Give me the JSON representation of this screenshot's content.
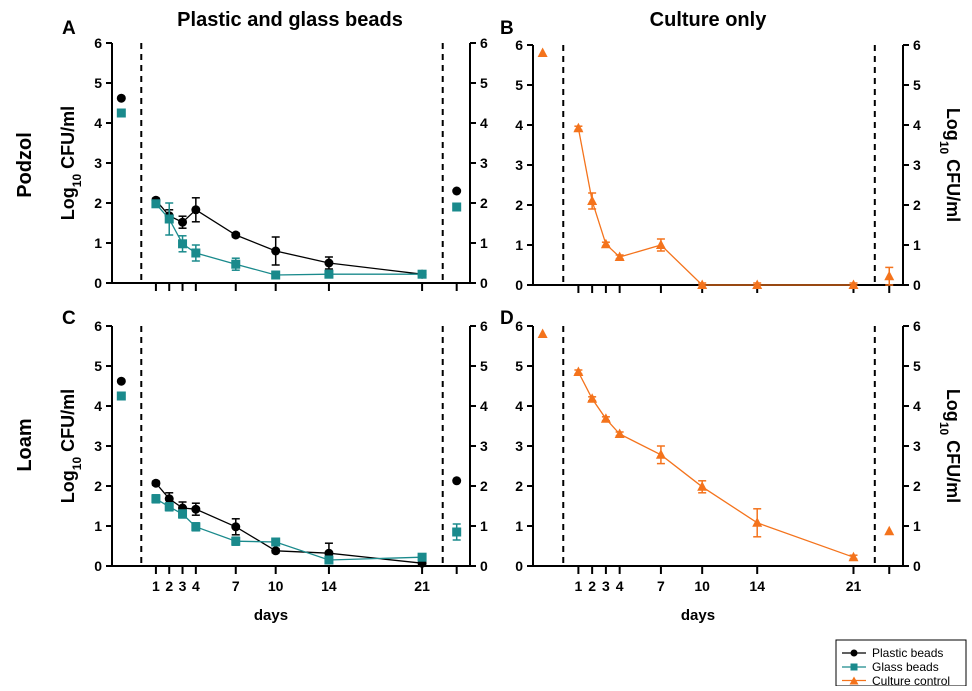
{
  "figure": {
    "column_titles": [
      "Plastic and glass beads",
      "Culture only"
    ],
    "row_labels": [
      "Podzol",
      "Loam"
    ],
    "ylabel_base": "Log",
    "ylabel_sub": "10",
    "ylabel_unit": " CFU/ml",
    "xlabel": "days",
    "colors": {
      "plastic": "#000000",
      "glass": "#1a8a8c",
      "culture": "#f4731c"
    }
  },
  "legend": {
    "items": [
      {
        "label": "Plastic beads",
        "marker": "circle",
        "color": "#000000"
      },
      {
        "label": "Glass beads",
        "marker": "square",
        "color": "#1a8a8c"
      },
      {
        "label": "Culture control",
        "marker": "triangle",
        "color": "#f4731c"
      }
    ]
  },
  "chart_data": [
    {
      "panel": "A",
      "type": "line",
      "ylim": [
        0,
        6
      ],
      "yticks": [
        0,
        1,
        2,
        3,
        4,
        5,
        6
      ],
      "xticks": [
        "1",
        "2",
        "3",
        "4",
        "7",
        "10",
        "14",
        "21"
      ],
      "x_tick_positions": [
        1,
        2,
        3,
        4,
        7,
        10,
        14,
        21
      ],
      "show_x_tick_labels": false,
      "series": [
        {
          "name": "Plastic beads",
          "marker": "circle",
          "color": "#000000",
          "pre": 4.62,
          "post": 2.3,
          "x": [
            1,
            2,
            3,
            4,
            7,
            10,
            14,
            21
          ],
          "y": [
            2.07,
            1.68,
            1.52,
            1.83,
            1.2,
            0.8,
            0.5,
            0.22
          ],
          "err": [
            0.05,
            0.15,
            0.15,
            0.3,
            0.05,
            0.35,
            0.15,
            0.05
          ]
        },
        {
          "name": "Glass beads",
          "marker": "square",
          "color": "#1a8a8c",
          "pre": 4.25,
          "post": 1.9,
          "x": [
            1,
            2,
            3,
            4,
            7,
            10,
            14,
            21
          ],
          "y": [
            1.98,
            1.6,
            0.98,
            0.75,
            0.47,
            0.2,
            0.22,
            0.22
          ],
          "err": [
            0.05,
            0.4,
            0.2,
            0.2,
            0.15,
            0.05,
            0.05,
            0.05
          ]
        }
      ]
    },
    {
      "panel": "B",
      "type": "line",
      "ylim": [
        0,
        6
      ],
      "yticks": [
        0,
        1,
        2,
        3,
        4,
        5,
        6
      ],
      "xticks": [
        "1",
        "2",
        "3",
        "4",
        "7",
        "10",
        "14",
        "21"
      ],
      "x_tick_positions": [
        1,
        2,
        3,
        4,
        7,
        10,
        14,
        21
      ],
      "show_x_tick_labels": false,
      "series": [
        {
          "name": "Culture control",
          "marker": "triangle",
          "color": "#f4731c",
          "pre": 5.8,
          "post": 0.22,
          "post_err": 0.22,
          "x": [
            1,
            2,
            3,
            4,
            7,
            10,
            14,
            21
          ],
          "y": [
            3.92,
            2.1,
            1.02,
            0.7,
            1.0,
            0.0,
            0.0,
            0.0
          ],
          "err": [
            0.05,
            0.2,
            0.05,
            0.05,
            0.15,
            0.05,
            0.05,
            0.05
          ]
        }
      ]
    },
    {
      "panel": "C",
      "type": "line",
      "ylim": [
        0,
        6
      ],
      "yticks": [
        0,
        1,
        2,
        3,
        4,
        5,
        6
      ],
      "xticks": [
        "1",
        "2",
        "3",
        "4",
        "7",
        "10",
        "14",
        "21"
      ],
      "x_tick_positions": [
        1,
        2,
        3,
        4,
        7,
        10,
        14,
        21
      ],
      "show_x_tick_labels": true,
      "series": [
        {
          "name": "Plastic beads",
          "marker": "circle",
          "color": "#000000",
          "pre": 4.62,
          "post": 2.13,
          "x": [
            1,
            2,
            3,
            4,
            7,
            10,
            14,
            21
          ],
          "y": [
            2.07,
            1.68,
            1.45,
            1.42,
            0.98,
            0.38,
            0.32,
            0.07
          ],
          "err": [
            0.05,
            0.15,
            0.15,
            0.15,
            0.2,
            0.05,
            0.25,
            0.05
          ]
        },
        {
          "name": "Glass beads",
          "marker": "square",
          "color": "#1a8a8c",
          "pre": 4.25,
          "post": 0.85,
          "post_err": 0.2,
          "x": [
            1,
            2,
            3,
            4,
            7,
            10,
            14,
            21
          ],
          "y": [
            1.68,
            1.48,
            1.3,
            0.98,
            0.62,
            0.6,
            0.15,
            0.22
          ],
          "err": [
            0.1,
            0.1,
            0.1,
            0.1,
            0.1,
            0.05,
            0.05,
            0.05
          ]
        }
      ]
    },
    {
      "panel": "D",
      "type": "line",
      "ylim": [
        0,
        6
      ],
      "yticks": [
        0,
        1,
        2,
        3,
        4,
        5,
        6
      ],
      "xticks": [
        "1",
        "2",
        "3",
        "4",
        "7",
        "10",
        "14",
        "21"
      ],
      "x_tick_positions": [
        1,
        2,
        3,
        4,
        7,
        10,
        14,
        21
      ],
      "show_x_tick_labels": true,
      "series": [
        {
          "name": "Culture control",
          "marker": "triangle",
          "color": "#f4731c",
          "pre": 5.8,
          "post": 0.87,
          "x": [
            1,
            2,
            3,
            4,
            7,
            10,
            14,
            21
          ],
          "y": [
            4.85,
            4.18,
            3.68,
            3.3,
            2.78,
            1.98,
            1.08,
            0.22
          ],
          "err": [
            0.05,
            0.05,
            0.05,
            0.05,
            0.22,
            0.15,
            0.35,
            0.05
          ]
        }
      ]
    }
  ]
}
